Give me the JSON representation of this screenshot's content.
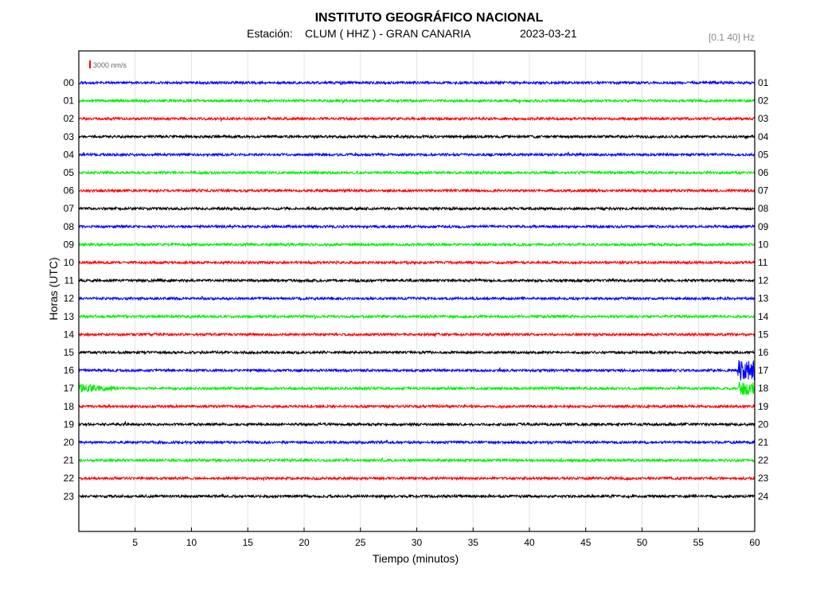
{
  "header": {
    "title": "INSTITUTO GEOGRÁFICO NACIONAL",
    "station_label": "Estación:",
    "station": "CLUM ( HHZ ) - GRAN CANARIA",
    "date": "2023-03-21",
    "filter": "[0.1 40] Hz"
  },
  "chart_data": {
    "type": "line",
    "title": "INSTITUTO GEOGRÁFICO NACIONAL",
    "xlabel": "Tiempo (minutos)",
    "ylabel": "Horas (UTC)",
    "xlim": [
      0,
      60
    ],
    "x_ticks": [
      "5",
      "10",
      "15",
      "20",
      "25",
      "30",
      "35",
      "40",
      "45",
      "50",
      "55",
      "60"
    ],
    "x_tick_values": [
      5,
      10,
      15,
      20,
      25,
      30,
      35,
      40,
      45,
      50,
      55,
      60
    ],
    "grid": true,
    "scale_bar": "3000 nm/s",
    "trace_colors": [
      "#0000ff",
      "#00ee00",
      "#ff0000",
      "#000000"
    ],
    "left_labels": [
      "00",
      "01",
      "02",
      "03",
      "04",
      "05",
      "06",
      "07",
      "08",
      "09",
      "10",
      "11",
      "12",
      "13",
      "14",
      "15",
      "16",
      "17",
      "18",
      "19",
      "20",
      "21",
      "22",
      "23"
    ],
    "right_labels": [
      "01",
      "02",
      "03",
      "04",
      "05",
      "06",
      "07",
      "08",
      "09",
      "10",
      "11",
      "12",
      "13",
      "14",
      "15",
      "16",
      "17",
      "18",
      "19",
      "20",
      "21",
      "22",
      "23",
      "24"
    ],
    "events": [
      {
        "hour": 16,
        "start_min": 58.5,
        "end_min": 60,
        "relative_amplitude": 8
      },
      {
        "hour": 17,
        "start_min": 0,
        "end_min": 5,
        "relative_amplitude": 4
      },
      {
        "hour": 17,
        "start_min": 58.5,
        "end_min": 60,
        "relative_amplitude": 5
      }
    ]
  }
}
